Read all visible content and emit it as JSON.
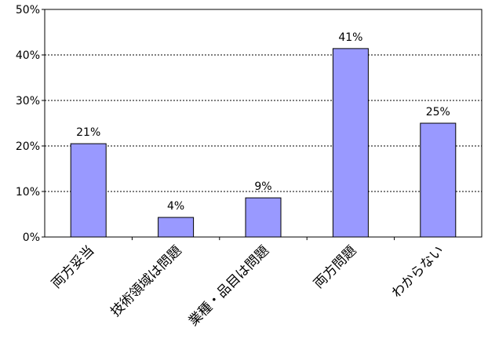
{
  "chart_data": {
    "type": "bar",
    "categories": [
      "両方妥当",
      "技術領域は問題",
      "業種・品目は問題",
      "両方問題",
      "わからない"
    ],
    "values": [
      20.5,
      4.3,
      8.6,
      41.4,
      25
    ],
    "value_labels": [
      "21%",
      "4%",
      "9%",
      "41%",
      "25%"
    ],
    "color": "#9999ff",
    "ylim": [
      0,
      50
    ],
    "yticks": [
      {
        "value": 0,
        "label": "0%"
      },
      {
        "value": 10,
        "label": "10%"
      },
      {
        "value": 20,
        "label": "20%"
      },
      {
        "value": 30,
        "label": "30%"
      },
      {
        "value": 40,
        "label": "40%"
      },
      {
        "value": 50,
        "label": "50%"
      }
    ],
    "grid": true
  }
}
